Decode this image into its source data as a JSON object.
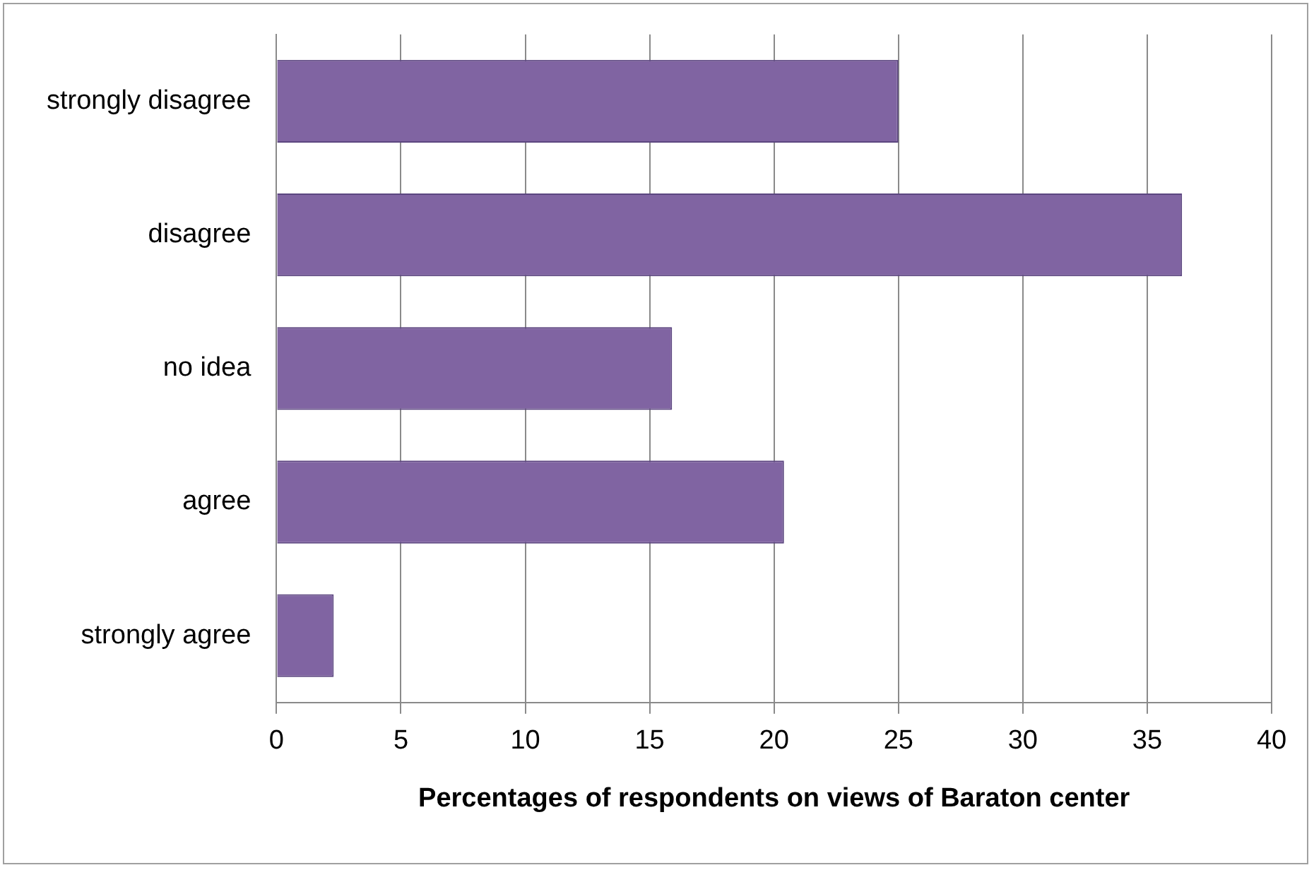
{
  "chart_data": {
    "type": "bar",
    "orientation": "horizontal",
    "xlabel": "Percentages of respondents on views of Baraton center",
    "categories": [
      "strongly disagree",
      "disagree",
      "no idea",
      "agree",
      "strongly agree"
    ],
    "values": [
      25,
      36.4,
      15.9,
      20.4,
      2.3
    ],
    "color": "#8064a2",
    "xlim": [
      0,
      40
    ],
    "xticks": [
      0,
      5,
      10,
      15,
      20,
      25,
      30,
      35,
      40
    ],
    "grid": "x",
    "legend": false
  }
}
